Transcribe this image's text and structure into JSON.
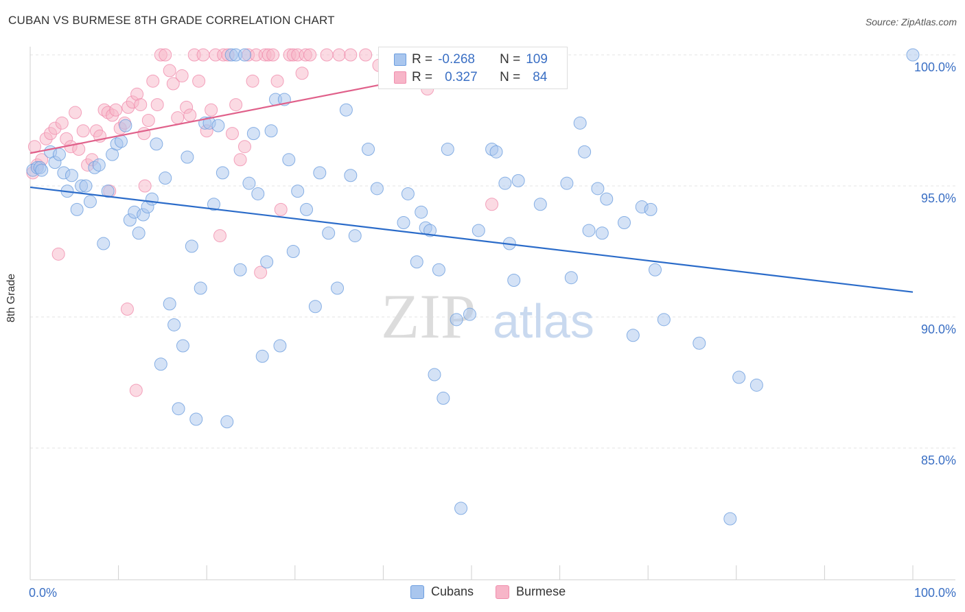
{
  "header": {
    "title": "CUBAN VS BURMESE 8TH GRADE CORRELATION CHART",
    "source": "Source: ZipAtlas.com"
  },
  "watermark": {
    "zip": "ZIP",
    "atlas": "atlas"
  },
  "legend": {
    "stats": [
      {
        "r_label": "R =",
        "r_value": "-0.268",
        "n_label": "N =",
        "n_value": "109",
        "color": "#a9c6ee"
      },
      {
        "r_label": "R =",
        "r_value": "0.327",
        "n_label": "N =",
        "n_value": "84",
        "color": "#f7b5c8"
      }
    ],
    "bottom": [
      {
        "label": "Cubans",
        "color": "#a9c6ee"
      },
      {
        "label": "Burmese",
        "color": "#f7b5c8"
      }
    ]
  },
  "chart_data": {
    "type": "scatter",
    "title": "CUBAN VS BURMESE 8TH GRADE CORRELATION CHART",
    "xlabel": "",
    "ylabel": "8th Grade",
    "xlim": [
      0,
      100
    ],
    "ylim": [
      80.5,
      100.9
    ],
    "x_tick_labels": [
      "0.0%",
      "100.0%"
    ],
    "y_ticks": [
      85,
      90,
      95,
      100
    ],
    "y_tick_labels": [
      "85.0%",
      "90.0%",
      "95.0%",
      "100.0%"
    ],
    "grid": true,
    "legend_position": "top-center",
    "series": [
      {
        "name": "Cubans",
        "color": "#6b9ddf",
        "fill": "#a9c6ee",
        "trend": {
          "x": [
            0,
            100
          ],
          "y": [
            94.95,
            90.95
          ],
          "color": "#2a6bc9"
        },
        "points": [
          [
            0.3,
            95.6
          ],
          [
            0.8,
            95.7
          ],
          [
            1.1,
            95.7
          ],
          [
            1.3,
            95.6
          ],
          [
            2.3,
            96.3
          ],
          [
            2.8,
            95.9
          ],
          [
            3.3,
            96.2
          ],
          [
            3.8,
            95.5
          ],
          [
            4.2,
            94.8
          ],
          [
            4.7,
            95.4
          ],
          [
            5.3,
            94.1
          ],
          [
            5.8,
            95.0
          ],
          [
            6.3,
            95.0
          ],
          [
            6.8,
            94.4
          ],
          [
            7.3,
            95.7
          ],
          [
            7.8,
            95.8
          ],
          [
            8.3,
            92.8
          ],
          [
            8.8,
            94.8
          ],
          [
            9.3,
            96.2
          ],
          [
            9.8,
            96.6
          ],
          [
            10.3,
            96.7
          ],
          [
            10.8,
            97.3
          ],
          [
            11.3,
            93.7
          ],
          [
            11.8,
            94.0
          ],
          [
            12.3,
            93.2
          ],
          [
            12.8,
            93.9
          ],
          [
            13.3,
            94.2
          ],
          [
            13.8,
            94.5
          ],
          [
            14.3,
            96.6
          ],
          [
            14.8,
            88.2
          ],
          [
            15.3,
            95.3
          ],
          [
            15.8,
            90.5
          ],
          [
            16.3,
            89.7
          ],
          [
            16.8,
            86.5
          ],
          [
            17.3,
            88.9
          ],
          [
            17.8,
            96.1
          ],
          [
            18.3,
            92.7
          ],
          [
            18.8,
            86.1
          ],
          [
            19.3,
            91.1
          ],
          [
            19.8,
            97.4
          ],
          [
            20.3,
            97.4
          ],
          [
            20.8,
            94.3
          ],
          [
            21.3,
            97.3
          ],
          [
            21.8,
            95.5
          ],
          [
            22.3,
            86.0
          ],
          [
            22.8,
            100.0
          ],
          [
            23.3,
            100.0
          ],
          [
            23.8,
            91.8
          ],
          [
            24.3,
            100.0
          ],
          [
            24.8,
            95.1
          ],
          [
            25.3,
            97.0
          ],
          [
            25.8,
            94.7
          ],
          [
            26.3,
            88.5
          ],
          [
            26.8,
            92.1
          ],
          [
            27.3,
            97.1
          ],
          [
            27.8,
            98.3
          ],
          [
            28.3,
            88.9
          ],
          [
            28.8,
            98.3
          ],
          [
            29.3,
            96.0
          ],
          [
            29.8,
            92.5
          ],
          [
            30.3,
            94.8
          ],
          [
            31.3,
            94.1
          ],
          [
            32.3,
            90.4
          ],
          [
            32.8,
            95.5
          ],
          [
            33.8,
            93.2
          ],
          [
            34.8,
            91.1
          ],
          [
            35.8,
            97.9
          ],
          [
            36.3,
            95.4
          ],
          [
            36.8,
            93.1
          ],
          [
            38.3,
            96.4
          ],
          [
            39.3,
            94.9
          ],
          [
            40.3,
            100.0
          ],
          [
            41.3,
            100.0
          ],
          [
            42.3,
            93.6
          ],
          [
            42.8,
            94.7
          ],
          [
            43.8,
            92.1
          ],
          [
            44.3,
            94.0
          ],
          [
            44.8,
            93.4
          ],
          [
            45.3,
            93.3
          ],
          [
            45.8,
            87.8
          ],
          [
            46.3,
            91.8
          ],
          [
            46.8,
            86.9
          ],
          [
            47.3,
            96.4
          ],
          [
            48.3,
            89.9
          ],
          [
            48.8,
            82.7
          ],
          [
            49.8,
            90.1
          ],
          [
            50.8,
            93.3
          ],
          [
            52.3,
            96.4
          ],
          [
            52.8,
            96.3
          ],
          [
            53.8,
            95.1
          ],
          [
            54.3,
            92.8
          ],
          [
            54.8,
            91.4
          ],
          [
            55.3,
            95.2
          ],
          [
            57.8,
            94.3
          ],
          [
            60.8,
            95.1
          ],
          [
            61.3,
            91.5
          ],
          [
            62.3,
            97.4
          ],
          [
            62.8,
            96.3
          ],
          [
            63.3,
            93.3
          ],
          [
            64.3,
            94.9
          ],
          [
            64.8,
            93.2
          ],
          [
            65.3,
            94.5
          ],
          [
            67.3,
            93.6
          ],
          [
            68.3,
            89.3
          ],
          [
            69.3,
            94.2
          ],
          [
            70.3,
            94.1
          ],
          [
            70.8,
            91.8
          ],
          [
            71.8,
            89.9
          ],
          [
            75.8,
            89.0
          ],
          [
            79.3,
            82.3
          ],
          [
            80.3,
            87.7
          ],
          [
            82.3,
            87.4
          ],
          [
            100,
            100.0
          ]
        ]
      },
      {
        "name": "Burmese",
        "color": "#f08cac",
        "fill": "#f7b5c8",
        "trend": {
          "x": [
            0,
            57
          ],
          "y": [
            96.25,
            100.0
          ],
          "color": "#e0608a"
        },
        "points": [
          [
            0.3,
            95.5
          ],
          [
            0.5,
            96.5
          ],
          [
            0.8,
            95.8
          ],
          [
            1.3,
            96.0
          ],
          [
            1.8,
            96.8
          ],
          [
            2.3,
            97.0
          ],
          [
            2.8,
            97.2
          ],
          [
            3.2,
            92.4
          ],
          [
            3.6,
            97.4
          ],
          [
            4.1,
            96.8
          ],
          [
            4.6,
            96.5
          ],
          [
            5.1,
            97.8
          ],
          [
            5.5,
            96.4
          ],
          [
            6.0,
            97.1
          ],
          [
            6.5,
            95.8
          ],
          [
            7.0,
            96.0
          ],
          [
            7.5,
            97.1
          ],
          [
            7.9,
            96.9
          ],
          [
            8.4,
            97.9
          ],
          [
            8.8,
            97.8
          ],
          [
            9.3,
            97.7
          ],
          [
            9.7,
            97.9
          ],
          [
            10.2,
            97.2
          ],
          [
            10.7,
            97.4
          ],
          [
            11.1,
            98.0
          ],
          [
            11.6,
            98.2
          ],
          [
            12.1,
            98.5
          ],
          [
            12.5,
            98.1
          ],
          [
            12.9,
            97.0
          ],
          [
            13.4,
            97.5
          ],
          [
            13.9,
            99.0
          ],
          [
            14.4,
            98.1
          ],
          [
            14.8,
            100.0
          ],
          [
            15.3,
            100.0
          ],
          [
            15.8,
            99.4
          ],
          [
            16.2,
            98.9
          ],
          [
            16.7,
            97.6
          ],
          [
            17.2,
            99.2
          ],
          [
            17.7,
            98.0
          ],
          [
            18.1,
            97.7
          ],
          [
            18.6,
            100.0
          ],
          [
            19.1,
            99.0
          ],
          [
            19.6,
            100.0
          ],
          [
            20.0,
            97.1
          ],
          [
            20.5,
            97.9
          ],
          [
            21.0,
            100.0
          ],
          [
            21.5,
            93.1
          ],
          [
            21.9,
            100.0
          ],
          [
            22.4,
            100.0
          ],
          [
            22.9,
            97.0
          ],
          [
            23.3,
            98.1
          ],
          [
            23.8,
            96.0
          ],
          [
            24.3,
            96.5
          ],
          [
            24.7,
            100.0
          ],
          [
            25.2,
            99.0
          ],
          [
            25.6,
            100.0
          ],
          [
            26.1,
            91.7
          ],
          [
            26.6,
            100.0
          ],
          [
            27.0,
            100.0
          ],
          [
            27.5,
            100.0
          ],
          [
            28.0,
            99.0
          ],
          [
            28.4,
            94.1
          ],
          [
            29.4,
            100.0
          ],
          [
            29.8,
            100.0
          ],
          [
            30.3,
            100.0
          ],
          [
            30.8,
            99.3
          ],
          [
            31.2,
            100.0
          ],
          [
            31.7,
            100.0
          ],
          [
            33.6,
            100.0
          ],
          [
            35.0,
            100.0
          ],
          [
            36.3,
            100.0
          ],
          [
            38.0,
            100.0
          ],
          [
            39.5,
            99.6
          ],
          [
            41.4,
            100.0
          ],
          [
            43.0,
            99.3
          ],
          [
            45.0,
            98.7
          ],
          [
            46.8,
            100.0
          ],
          [
            48.8,
            100.0
          ],
          [
            50.8,
            99.8
          ],
          [
            52.3,
            94.3
          ],
          [
            9.0,
            94.8
          ],
          [
            13.0,
            95.0
          ],
          [
            11.0,
            90.3
          ],
          [
            12.0,
            87.2
          ]
        ]
      }
    ]
  }
}
